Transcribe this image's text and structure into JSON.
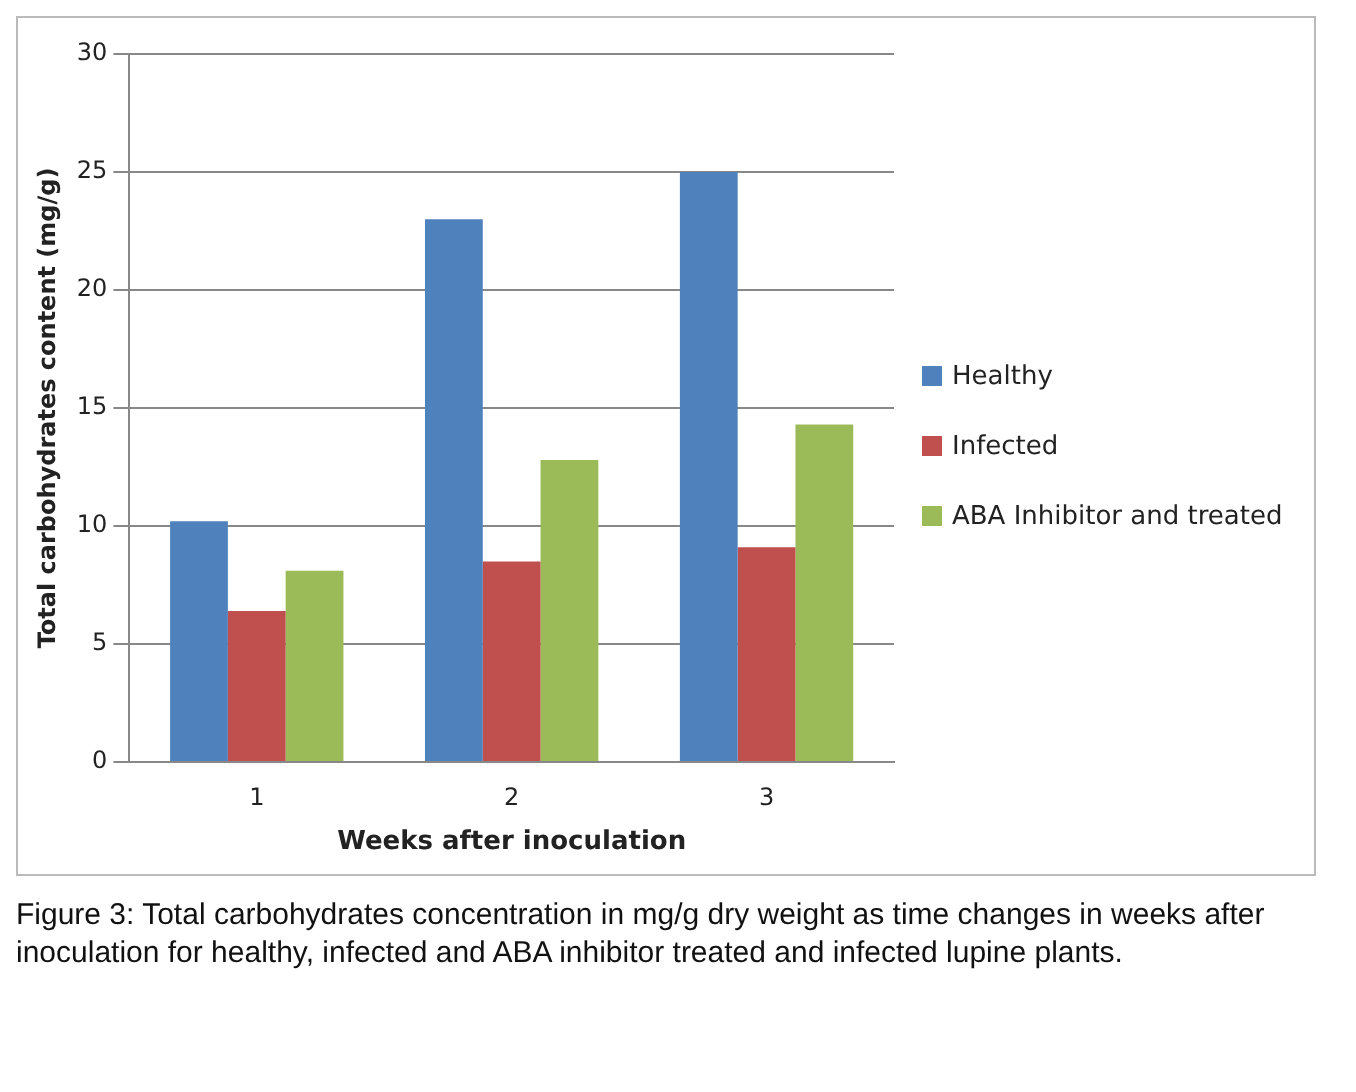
{
  "chart_data": {
    "type": "bar",
    "xlabel": "Weeks after inoculation",
    "ylabel": "Total carbohydrates content (mg/g)",
    "categories": [
      "1",
      "2",
      "3"
    ],
    "series": [
      {
        "name": "Healthy",
        "color": "#4f81bd",
        "values": [
          10.2,
          23,
          25
        ]
      },
      {
        "name": "Infected",
        "color": "#c0504d",
        "values": [
          6.4,
          8.5,
          9.1
        ]
      },
      {
        "name": "ABA Inhibitor and treated",
        "color": "#9bbb59",
        "values": [
          8.1,
          12.8,
          14.3
        ]
      }
    ],
    "ylim": [
      0,
      30
    ],
    "yticks": [
      0,
      5,
      10,
      15,
      20,
      25,
      30
    ],
    "grid": "y",
    "legend": "right",
    "annotations": [
      "Figure 3: Total carbohydrates concentration in mg/g dry weight as time changes in weeks after inoculation for healthy, infected and ABA inhibitor treated and infected lupine plants."
    ]
  }
}
